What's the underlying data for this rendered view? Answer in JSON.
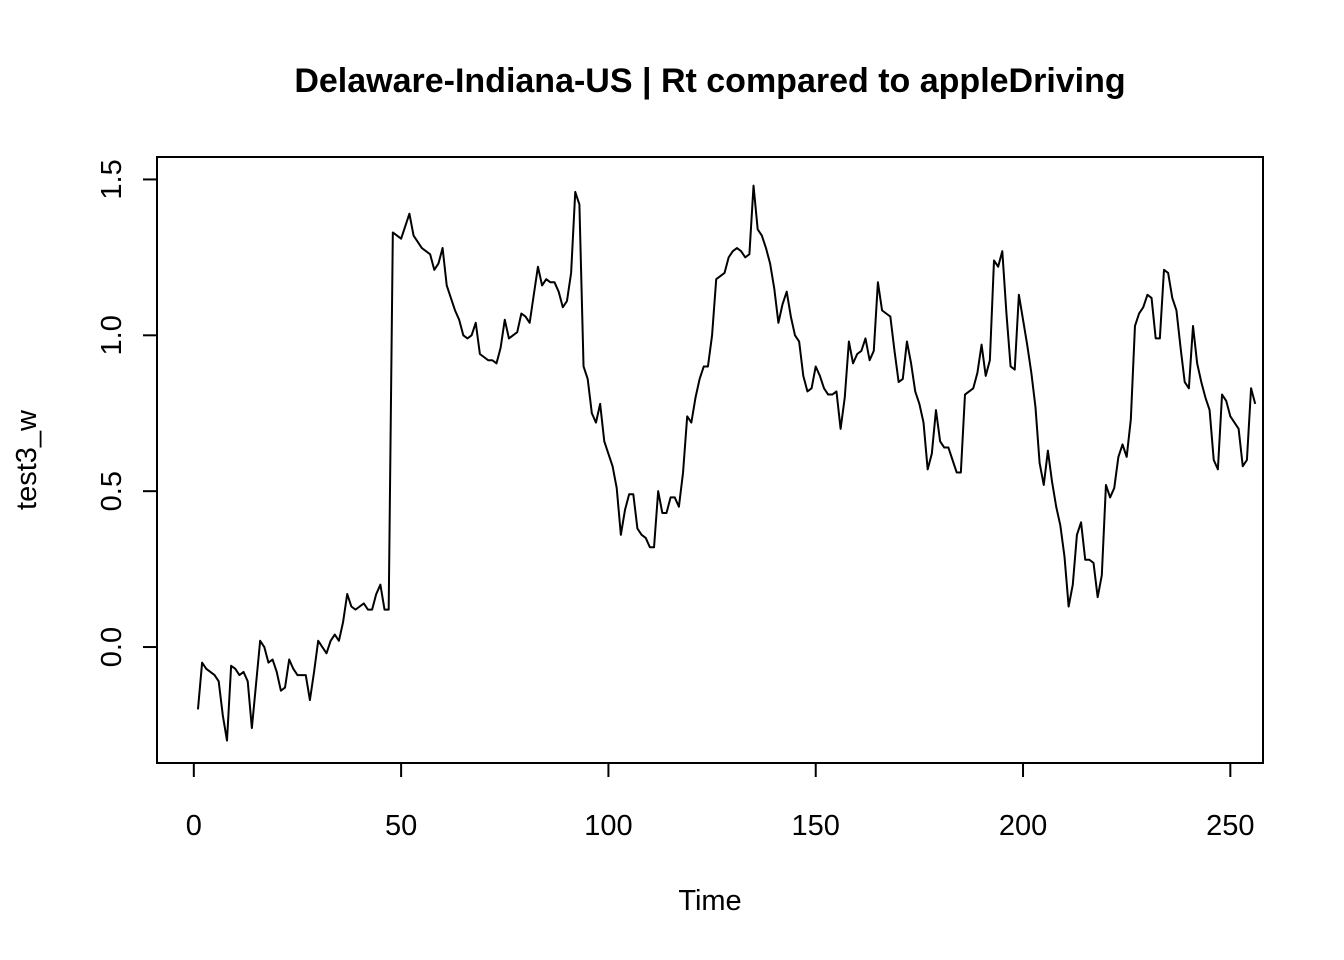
{
  "chart_data": {
    "type": "line",
    "title": "Delaware-Indiana-US | Rt compared to appleDriving",
    "xlabel": "Time",
    "ylabel": "test3_w",
    "xlim": [
      1,
      248
    ],
    "ylim": [
      -0.3,
      1.5
    ],
    "x_ticks": [
      0,
      50,
      100,
      150,
      200,
      250
    ],
    "x_tick_labels": [
      "0",
      "50",
      "100",
      "150",
      "200",
      "250"
    ],
    "y_ticks": [
      0.0,
      0.5,
      1.0,
      1.5
    ],
    "y_tick_labels": [
      "0.0",
      "0.5",
      "1.0",
      "1.5"
    ],
    "grid": false,
    "series": [
      {
        "x_start": 1,
        "values": [
          -0.2,
          -0.05,
          -0.07,
          -0.08,
          -0.09,
          -0.11,
          -0.22,
          -0.3,
          -0.06,
          -0.07,
          -0.09,
          -0.08,
          -0.11,
          -0.26,
          -0.12,
          0.02,
          0.0,
          -0.05,
          -0.04,
          -0.08,
          -0.14,
          -0.13,
          -0.04,
          -0.07,
          -0.09,
          -0.09,
          -0.09,
          -0.17,
          -0.08,
          0.02,
          0.0,
          -0.02,
          0.02,
          0.04,
          0.02,
          0.08,
          0.17,
          0.13,
          0.12,
          0.13,
          0.14,
          0.12,
          0.12,
          0.17,
          0.2,
          0.12,
          0.12,
          1.33,
          1.32,
          1.31,
          1.35,
          1.39,
          1.32,
          1.3,
          1.28,
          1.27,
          1.26,
          1.21,
          1.23,
          1.28,
          1.16,
          1.12,
          1.08,
          1.05,
          1.0,
          0.99,
          1.0,
          1.04,
          0.94,
          0.93,
          0.92,
          0.92,
          0.91,
          0.96,
          1.05,
          0.99,
          1.0,
          1.01,
          1.07,
          1.06,
          1.04,
          1.13,
          1.22,
          1.16,
          1.18,
          1.17,
          1.17,
          1.14,
          1.09,
          1.11,
          1.2,
          1.46,
          1.42,
          0.9,
          0.86,
          0.75,
          0.72,
          0.78,
          0.66,
          0.62,
          0.58,
          0.51,
          0.36,
          0.44,
          0.49,
          0.49,
          0.38,
          0.36,
          0.35,
          0.32,
          0.32,
          0.5,
          0.43,
          0.43,
          0.48,
          0.48,
          0.45,
          0.56,
          0.74,
          0.72,
          0.8,
          0.86,
          0.9,
          0.9,
          1.0,
          1.18,
          1.19,
          1.2,
          1.25,
          1.27,
          1.28,
          1.27,
          1.25,
          1.26,
          1.48,
          1.34,
          1.32,
          1.28,
          1.23,
          1.15,
          1.04,
          1.1,
          1.14,
          1.06,
          1.0,
          0.98,
          0.87,
          0.82,
          0.83,
          0.9,
          0.87,
          0.83,
          0.81,
          0.81,
          0.82,
          0.7,
          0.8,
          0.98,
          0.91,
          0.94,
          0.95,
          0.99,
          0.92,
          0.95,
          1.17,
          1.08,
          1.07,
          1.06,
          0.95,
          0.85,
          0.86,
          0.98,
          0.91,
          0.82,
          0.78,
          0.72,
          0.57,
          0.62,
          0.76,
          0.66,
          0.64,
          0.64,
          0.6,
          0.56,
          0.56,
          0.81,
          0.82,
          0.83,
          0.88,
          0.97,
          0.87,
          0.92,
          1.24,
          1.22,
          1.27,
          1.07,
          0.9,
          0.89,
          1.13,
          1.05,
          0.97,
          0.88,
          0.77,
          0.59,
          0.52,
          0.63,
          0.53,
          0.45,
          0.39,
          0.29,
          0.13,
          0.2,
          0.36,
          0.4,
          0.28,
          0.28,
          0.27,
          0.16,
          0.23,
          0.52,
          0.48,
          0.51,
          0.61,
          0.65,
          0.61,
          0.73,
          1.03,
          1.07,
          1.09,
          1.13,
          1.12,
          0.99,
          0.99,
          1.21,
          1.2,
          1.12,
          1.08,
          0.96,
          0.85,
          0.83,
          1.03,
          0.91,
          0.85,
          0.8,
          0.76,
          0.6,
          0.57,
          0.81,
          0.79,
          0.74,
          0.72,
          0.7,
          0.58,
          0.6,
          0.83,
          0.78
        ]
      }
    ]
  }
}
